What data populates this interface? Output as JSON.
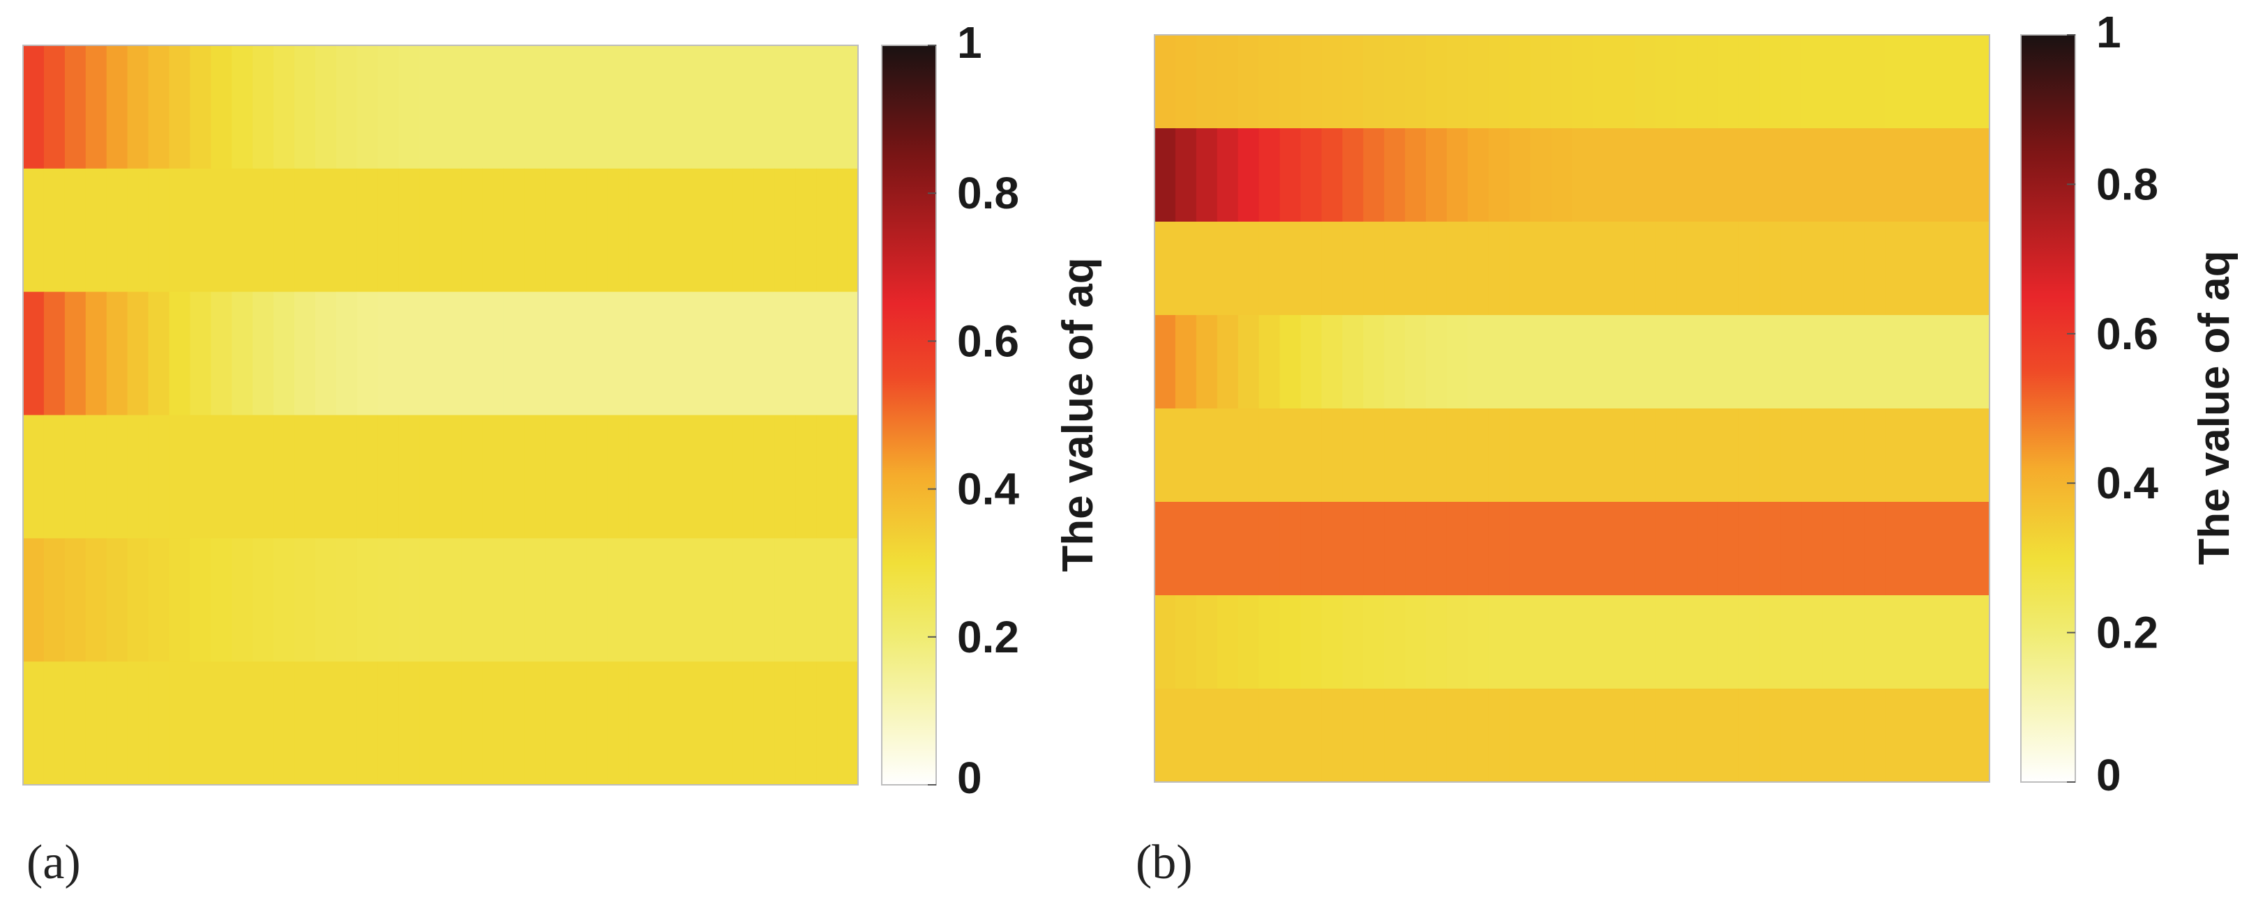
{
  "colormap": [
    "#ffffff",
    "#f0ec72",
    "#f1df38",
    "#f5ab2c",
    "#ef4a27",
    "#e8262a",
    "#7a1515",
    "#1a1212"
  ],
  "chart_data": [
    {
      "type": "heatmap",
      "panel_label": "(a)",
      "colorbar": {
        "label": "The value of aq",
        "range": [
          0,
          1
        ],
        "ticks": [
          "0",
          "0.2",
          "0.4",
          "0.6",
          "0.8",
          "1"
        ]
      },
      "columns": 40,
      "rows": [
        {
          "start": 0.57,
          "end": 0.2,
          "decay": 0.5
        },
        {
          "start": 0.31,
          "end": 0.31,
          "decay": 1
        },
        {
          "start": 0.55,
          "end": 0.16,
          "decay": 0.45
        },
        {
          "start": 0.31,
          "end": 0.31,
          "decay": 1
        },
        {
          "start": 0.38,
          "end": 0.26,
          "decay": 0.5
        },
        {
          "start": 0.31,
          "end": 0.31,
          "decay": 1
        }
      ]
    },
    {
      "type": "heatmap",
      "panel_label": "(b)",
      "colorbar": {
        "label": "The value of aq",
        "range": [
          0,
          1
        ],
        "ticks": [
          "0",
          "0.2",
          "0.4",
          "0.6",
          "0.8",
          "1"
        ]
      },
      "columns": 40,
      "rows": [
        {
          "start": 0.38,
          "end": 0.3,
          "decay": 1
        },
        {
          "start": 0.8,
          "end": 0.38,
          "decay": 0.55
        },
        {
          "start": 0.35,
          "end": 0.35,
          "decay": 1
        },
        {
          "start": 0.46,
          "end": 0.2,
          "decay": 0.4
        },
        {
          "start": 0.35,
          "end": 0.35,
          "decay": 1
        },
        {
          "start": 0.5,
          "end": 0.5,
          "decay": 1
        },
        {
          "start": 0.34,
          "end": 0.26,
          "decay": 0.5
        },
        {
          "start": 0.35,
          "end": 0.35,
          "decay": 1
        }
      ]
    }
  ]
}
